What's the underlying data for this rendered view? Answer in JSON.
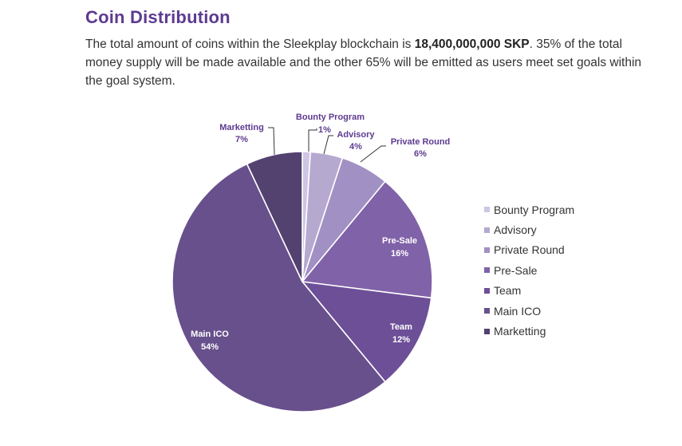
{
  "header": {
    "title": "Coin Distribution",
    "intro_before": "The total amount of coins within the Sleekplay blockchain is ",
    "intro_bold": "18,400,000,000 SKP",
    "intro_after": ". 35% of the total money supply will be made available and the other 65% will be emitted as users meet set goals within the goal system."
  },
  "chart_data": {
    "type": "pie",
    "title": "",
    "unit": "%",
    "legend_position": "right",
    "series": [
      {
        "name": "Bounty Program",
        "value": 1,
        "label": "1%",
        "color": "#cfc6e3"
      },
      {
        "name": "Advisory",
        "value": 4,
        "label": "4%",
        "color": "#b6a9d0"
      },
      {
        "name": "Private Round",
        "value": 6,
        "label": "6%",
        "color": "#a190c3"
      },
      {
        "name": "Pre-Sale",
        "value": 16,
        "label": "16%",
        "color": "#8062a8"
      },
      {
        "name": "Team",
        "value": 12,
        "label": "12%",
        "color": "#6d4f98"
      },
      {
        "name": "Main ICO",
        "value": 54,
        "label": "54%",
        "color": "#67508c"
      },
      {
        "name": "Marketting",
        "value": 7,
        "label": "7%",
        "color": "#53416f"
      }
    ]
  }
}
